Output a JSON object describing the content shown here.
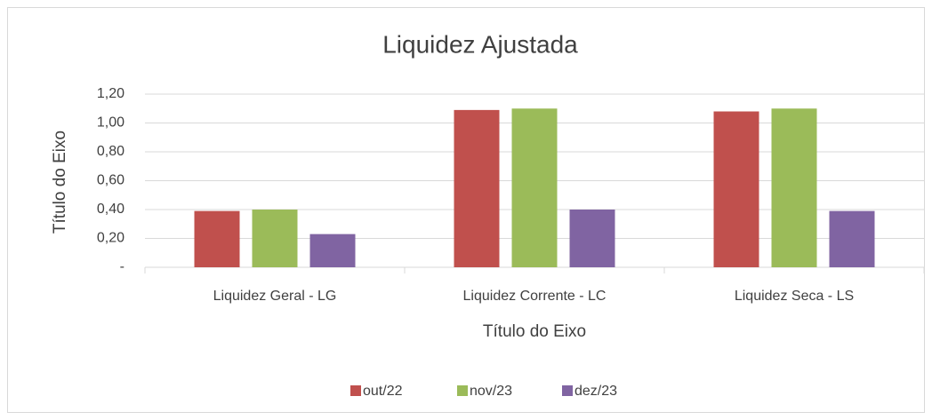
{
  "chart_data": {
    "type": "bar",
    "title": "Liquidez Ajustada",
    "x_label": "Título do Eixo",
    "y_label": "Título do Eixo",
    "categories": [
      "Liquidez Geral - LG",
      "Liquidez Corrente - LC",
      "Liquidez Seca - LS"
    ],
    "series": [
      {
        "name": "out/22",
        "color": "#c0504d",
        "values": [
          0.39,
          1.09,
          1.08
        ]
      },
      {
        "name": "nov/23",
        "color": "#9bbb59",
        "values": [
          0.4,
          1.1,
          1.1
        ]
      },
      {
        "name": "dez/23",
        "color": "#8064a2",
        "values": [
          0.23,
          0.4,
          0.39
        ]
      }
    ],
    "ylim": [
      0,
      1.2
    ],
    "yticks": [
      {
        "value": 0,
        "label": "-"
      },
      {
        "value": 0.2,
        "label": "0,20"
      },
      {
        "value": 0.4,
        "label": "0,40"
      },
      {
        "value": 0.6,
        "label": "0,60"
      },
      {
        "value": 0.8,
        "label": "0,80"
      },
      {
        "value": 1.0,
        "label": "1,00"
      },
      {
        "value": 1.2,
        "label": "1,20"
      }
    ],
    "grid": true,
    "legend": "bottom"
  }
}
